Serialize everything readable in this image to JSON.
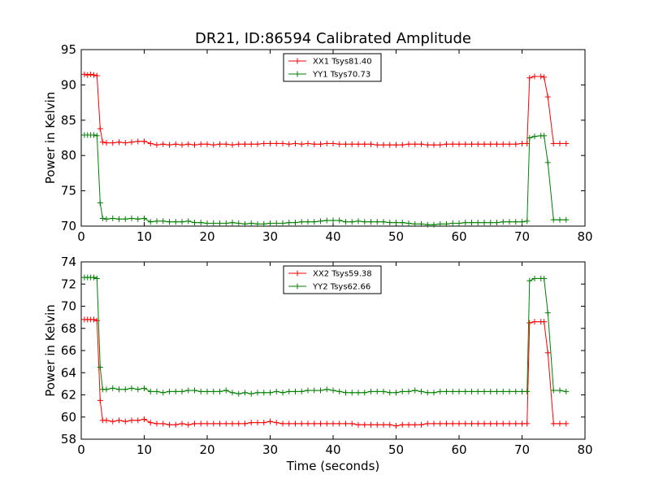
{
  "figure_title": "DR21, ID:86594 Calibrated Amplitude",
  "chart_data": [
    {
      "type": "line",
      "title": "DR21, ID:86594 Calibrated Amplitude",
      "xlabel": "",
      "ylabel": "Power in Kelvin",
      "xlim": [
        0,
        80
      ],
      "ylim": [
        70,
        95
      ],
      "xticks": [
        0,
        10,
        20,
        30,
        40,
        50,
        60,
        70,
        80
      ],
      "yticks": [
        70,
        75,
        80,
        85,
        90,
        95
      ],
      "grid": false,
      "legend_position": "top-center",
      "series": [
        {
          "name": "XX1 Tsys81.40",
          "color": "#ff0000",
          "marker": "+",
          "x": [
            0.5,
            1,
            1.5,
            2,
            2.5,
            3,
            3.4,
            4,
            5,
            6,
            7,
            8,
            9,
            10,
            11,
            12,
            13,
            14,
            15,
            16,
            17,
            18,
            19,
            20,
            21,
            22,
            23,
            24,
            25,
            26,
            27,
            28,
            29,
            30,
            31,
            32,
            33,
            34,
            35,
            36,
            37,
            38,
            39,
            40,
            41,
            42,
            43,
            44,
            45,
            46,
            47,
            48,
            49,
            50,
            51,
            52,
            53,
            54,
            55,
            56,
            57,
            58,
            59,
            60,
            61,
            62,
            63,
            64,
            65,
            66,
            67,
            68,
            69,
            70,
            70.8,
            71.2,
            72,
            73,
            73.5,
            74.1,
            75,
            76,
            77
          ],
          "y": [
            91.5,
            91.4,
            91.5,
            91.4,
            91.3,
            83.8,
            81.9,
            81.8,
            81.8,
            81.9,
            81.8,
            81.9,
            82.0,
            82.0,
            81.7,
            81.5,
            81.6,
            81.5,
            81.6,
            81.5,
            81.6,
            81.5,
            81.6,
            81.6,
            81.5,
            81.6,
            81.6,
            81.5,
            81.6,
            81.6,
            81.6,
            81.6,
            81.7,
            81.7,
            81.7,
            81.7,
            81.6,
            81.7,
            81.6,
            81.7,
            81.6,
            81.6,
            81.7,
            81.7,
            81.6,
            81.6,
            81.6,
            81.6,
            81.6,
            81.6,
            81.5,
            81.5,
            81.5,
            81.5,
            81.5,
            81.6,
            81.6,
            81.6,
            81.5,
            81.5,
            81.5,
            81.6,
            81.6,
            81.6,
            81.6,
            81.6,
            81.6,
            81.6,
            81.6,
            81.6,
            81.6,
            81.6,
            81.6,
            81.7,
            81.7,
            91.0,
            91.2,
            91.2,
            91.1,
            88.3,
            81.7,
            81.7,
            81.7
          ]
        },
        {
          "name": "YY1 Tsys70.73",
          "color": "#008000",
          "marker": "+",
          "x": [
            0.5,
            1,
            1.5,
            2,
            2.5,
            3,
            3.4,
            4,
            5,
            6,
            7,
            8,
            9,
            10,
            11,
            12,
            13,
            14,
            15,
            16,
            17,
            18,
            19,
            20,
            21,
            22,
            23,
            24,
            25,
            26,
            27,
            28,
            29,
            30,
            31,
            32,
            33,
            34,
            35,
            36,
            37,
            38,
            39,
            40,
            41,
            42,
            43,
            44,
            45,
            46,
            47,
            48,
            49,
            50,
            51,
            52,
            53,
            54,
            55,
            56,
            57,
            58,
            59,
            60,
            61,
            62,
            63,
            64,
            65,
            66,
            67,
            68,
            69,
            70,
            70.8,
            71.2,
            72,
            73,
            73.5,
            74.1,
            75,
            76,
            77
          ],
          "y": [
            82.9,
            82.9,
            82.9,
            82.9,
            82.8,
            73.3,
            71.1,
            71.0,
            71.1,
            71.0,
            71.0,
            71.1,
            71.0,
            71.1,
            70.6,
            70.7,
            70.7,
            70.6,
            70.6,
            70.6,
            70.7,
            70.5,
            70.5,
            70.4,
            70.4,
            70.4,
            70.4,
            70.5,
            70.4,
            70.3,
            70.4,
            70.3,
            70.3,
            70.4,
            70.4,
            70.4,
            70.5,
            70.5,
            70.6,
            70.6,
            70.6,
            70.7,
            70.8,
            70.8,
            70.8,
            70.6,
            70.6,
            70.7,
            70.6,
            70.6,
            70.6,
            70.6,
            70.5,
            70.5,
            70.5,
            70.4,
            70.3,
            70.3,
            70.2,
            70.2,
            70.3,
            70.3,
            70.4,
            70.4,
            70.5,
            70.5,
            70.5,
            70.5,
            70.5,
            70.5,
            70.6,
            70.6,
            70.6,
            70.6,
            70.7,
            82.5,
            82.7,
            82.8,
            82.8,
            79.0,
            70.9,
            70.9,
            70.9
          ]
        }
      ]
    },
    {
      "type": "line",
      "title": "",
      "xlabel": "Time (seconds)",
      "ylabel": "Power in Kelvin",
      "xlim": [
        0,
        80
      ],
      "ylim": [
        58,
        74
      ],
      "xticks": [
        0,
        10,
        20,
        30,
        40,
        50,
        60,
        70,
        80
      ],
      "yticks": [
        58,
        60,
        62,
        64,
        66,
        68,
        70,
        72,
        74
      ],
      "grid": false,
      "legend_position": "top-center",
      "series": [
        {
          "name": "XX2 Tsys59.38",
          "color": "#ff0000",
          "marker": "+",
          "x": [
            0.5,
            1,
            1.5,
            2,
            2.5,
            3,
            3.4,
            4,
            5,
            6,
            7,
            8,
            9,
            10,
            11,
            12,
            13,
            14,
            15,
            16,
            17,
            18,
            19,
            20,
            21,
            22,
            23,
            24,
            25,
            26,
            27,
            28,
            29,
            30,
            31,
            32,
            33,
            34,
            35,
            36,
            37,
            38,
            39,
            40,
            41,
            42,
            43,
            44,
            45,
            46,
            47,
            48,
            49,
            50,
            51,
            52,
            53,
            54,
            55,
            56,
            57,
            58,
            59,
            60,
            61,
            62,
            63,
            64,
            65,
            66,
            67,
            68,
            69,
            70,
            70.8,
            71.2,
            72,
            73,
            73.5,
            74.1,
            75,
            76,
            77
          ],
          "y": [
            68.8,
            68.8,
            68.8,
            68.8,
            68.7,
            61.5,
            59.7,
            59.7,
            59.6,
            59.7,
            59.6,
            59.7,
            59.7,
            59.8,
            59.5,
            59.4,
            59.4,
            59.3,
            59.3,
            59.4,
            59.3,
            59.4,
            59.4,
            59.4,
            59.4,
            59.4,
            59.4,
            59.4,
            59.4,
            59.4,
            59.5,
            59.5,
            59.5,
            59.6,
            59.5,
            59.4,
            59.4,
            59.4,
            59.4,
            59.4,
            59.4,
            59.4,
            59.4,
            59.4,
            59.4,
            59.4,
            59.4,
            59.3,
            59.3,
            59.3,
            59.3,
            59.3,
            59.3,
            59.2,
            59.3,
            59.3,
            59.3,
            59.3,
            59.4,
            59.4,
            59.4,
            59.4,
            59.4,
            59.4,
            59.4,
            59.4,
            59.4,
            59.4,
            59.4,
            59.4,
            59.4,
            59.4,
            59.4,
            59.4,
            59.4,
            68.5,
            68.6,
            68.6,
            68.6,
            65.8,
            59.4,
            59.4,
            59.4
          ]
        },
        {
          "name": "YY2 Tsys62.66",
          "color": "#008000",
          "marker": "+",
          "x": [
            0.5,
            1,
            1.5,
            2,
            2.5,
            3,
            3.4,
            4,
            5,
            6,
            7,
            8,
            9,
            10,
            11,
            12,
            13,
            14,
            15,
            16,
            17,
            18,
            19,
            20,
            21,
            22,
            23,
            24,
            25,
            26,
            27,
            28,
            29,
            30,
            31,
            32,
            33,
            34,
            35,
            36,
            37,
            38,
            39,
            40,
            41,
            42,
            43,
            44,
            45,
            46,
            47,
            48,
            49,
            50,
            51,
            52,
            53,
            54,
            55,
            56,
            57,
            58,
            59,
            60,
            61,
            62,
            63,
            64,
            65,
            66,
            67,
            68,
            69,
            70,
            70.8,
            71.2,
            72,
            73,
            73.5,
            74.1,
            75,
            76,
            77
          ],
          "y": [
            72.6,
            72.6,
            72.6,
            72.6,
            72.5,
            64.5,
            62.5,
            62.5,
            62.6,
            62.5,
            62.5,
            62.6,
            62.5,
            62.6,
            62.3,
            62.3,
            62.2,
            62.3,
            62.3,
            62.3,
            62.4,
            62.4,
            62.3,
            62.3,
            62.3,
            62.3,
            62.4,
            62.2,
            62.1,
            62.2,
            62.1,
            62.2,
            62.2,
            62.2,
            62.3,
            62.2,
            62.3,
            62.3,
            62.3,
            62.4,
            62.4,
            62.4,
            62.5,
            62.4,
            62.3,
            62.2,
            62.2,
            62.2,
            62.2,
            62.3,
            62.3,
            62.3,
            62.2,
            62.2,
            62.3,
            62.3,
            62.4,
            62.3,
            62.2,
            62.2,
            62.3,
            62.3,
            62.3,
            62.3,
            62.3,
            62.3,
            62.3,
            62.3,
            62.3,
            62.3,
            62.3,
            62.3,
            62.3,
            62.3,
            62.3,
            72.3,
            72.5,
            72.5,
            72.5,
            69.4,
            62.4,
            62.4,
            62.3
          ]
        }
      ]
    }
  ]
}
